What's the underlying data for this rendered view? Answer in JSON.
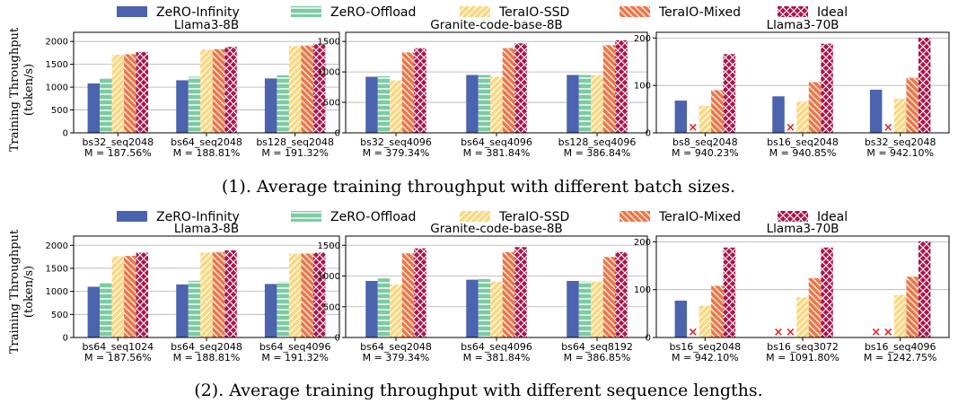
{
  "legend": [
    "ZeRO-Infinity",
    "ZeRO-Offload",
    "TeraIO-SSD",
    "TeraIO-Mixed",
    "Ideal"
  ],
  "colors": {
    "ZeRO-Infinity": "#4c63ad",
    "ZeRO-Offload": "#7ccba2",
    "TeraIO-SSD": "#fbd77e",
    "TeraIO-Mixed": "#ee7747",
    "Ideal": "#a8164c",
    "missing_marker": "#e02020"
  },
  "ylabel": [
    "Training Throughput",
    "(token/s)"
  ],
  "captions": [
    "(1). Average training throughput with different batch sizes.",
    "(2). Average training throughput with different sequence lengths."
  ],
  "missing_marker": "×",
  "chart_data": [
    {
      "type": "bar",
      "group": 1,
      "title": "Llama3-8B",
      "ylim": [
        0,
        2200
      ],
      "yticks": [
        0,
        500,
        1000,
        1500,
        2000
      ],
      "categories": [
        "bs32_seq2048",
        "bs64_seq2048",
        "bs128_seq2048"
      ],
      "category_notes": [
        "M = 187.56%",
        "M = 188.81%",
        "M = 191.32%"
      ],
      "series": [
        {
          "name": "ZeRO-Infinity",
          "values": [
            1080,
            1150,
            1190
          ]
        },
        {
          "name": "ZeRO-Offload",
          "values": [
            1190,
            1230,
            1260
          ]
        },
        {
          "name": "TeraIO-SSD",
          "values": [
            1710,
            1820,
            1900
          ]
        },
        {
          "name": "TeraIO-Mixed",
          "values": [
            1720,
            1830,
            1910
          ]
        },
        {
          "name": "Ideal",
          "values": [
            1770,
            1880,
            1950
          ]
        }
      ]
    },
    {
      "type": "bar",
      "group": 1,
      "title": "Granite-code-base-8B",
      "ylim": [
        0,
        1650
      ],
      "yticks": [
        0,
        500,
        1000,
        1500
      ],
      "categories": [
        "bs32_seq4096",
        "bs64_seq4096",
        "bs128_seq4096"
      ],
      "category_notes": [
        "M = 379.34%",
        "M = 381.84%",
        "M = 386.84%"
      ],
      "series": [
        {
          "name": "ZeRO-Infinity",
          "values": [
            920,
            950,
            950
          ]
        },
        {
          "name": "ZeRO-Offload",
          "values": [
            930,
            950,
            950
          ]
        },
        {
          "name": "TeraIO-SSD",
          "values": [
            860,
            920,
            950
          ]
        },
        {
          "name": "TeraIO-Mixed",
          "values": [
            1320,
            1390,
            1440
          ]
        },
        {
          "name": "Ideal",
          "values": [
            1390,
            1470,
            1520
          ]
        }
      ]
    },
    {
      "type": "bar",
      "group": 1,
      "title": "Llama3-70B",
      "ylim": [
        0,
        212
      ],
      "yticks": [
        0,
        100,
        200
      ],
      "categories": [
        "bs8_seq2048",
        "bs16_seq2048",
        "bs32_seq2048"
      ],
      "category_notes": [
        "M = 940.23%",
        "M = 940.85%",
        "M = 942.10%"
      ],
      "series": [
        {
          "name": "ZeRO-Infinity",
          "values": [
            68,
            77,
            91
          ]
        },
        {
          "name": "ZeRO-Offload",
          "values": [
            null,
            null,
            null
          ]
        },
        {
          "name": "TeraIO-SSD",
          "values": [
            57,
            66,
            72
          ]
        },
        {
          "name": "TeraIO-Mixed",
          "values": [
            90,
            107,
            116
          ]
        },
        {
          "name": "Ideal",
          "values": [
            166,
            188,
            201
          ]
        }
      ]
    },
    {
      "type": "bar",
      "group": 2,
      "title": "Llama3-8B",
      "ylim": [
        0,
        2200
      ],
      "yticks": [
        0,
        500,
        1000,
        1500,
        2000
      ],
      "categories": [
        "bs64_seq1024",
        "bs64_seq2048",
        "bs64_seq4096"
      ],
      "category_notes": [
        "M = 187.56%",
        "M = 188.81%",
        "M = 191.32%"
      ],
      "series": [
        {
          "name": "ZeRO-Infinity",
          "values": [
            1100,
            1150,
            1160
          ]
        },
        {
          "name": "ZeRO-Offload",
          "values": [
            1180,
            1230,
            1210
          ]
        },
        {
          "name": "TeraIO-SSD",
          "values": [
            1760,
            1840,
            1820
          ]
        },
        {
          "name": "TeraIO-Mixed",
          "values": [
            1770,
            1850,
            1820
          ]
        },
        {
          "name": "Ideal",
          "values": [
            1840,
            1890,
            1840
          ]
        }
      ]
    },
    {
      "type": "bar",
      "group": 2,
      "title": "Granite-code-base-8B",
      "ylim": [
        0,
        1650
      ],
      "yticks": [
        0,
        500,
        1000,
        1500
      ],
      "categories": [
        "bs64_seq2048",
        "bs64_seq4096",
        "bs64_seq8192"
      ],
      "category_notes": [
        "M = 379.34%",
        "M = 381.84%",
        "M = 386.85%"
      ],
      "series": [
        {
          "name": "ZeRO-Infinity",
          "values": [
            920,
            940,
            920
          ]
        },
        {
          "name": "ZeRO-Offload",
          "values": [
            960,
            950,
            910
          ]
        },
        {
          "name": "TeraIO-SSD",
          "values": [
            860,
            910,
            910
          ]
        },
        {
          "name": "TeraIO-Mixed",
          "values": [
            1370,
            1390,
            1310
          ]
        },
        {
          "name": "Ideal",
          "values": [
            1450,
            1470,
            1390
          ]
        }
      ]
    },
    {
      "type": "bar",
      "group": 2,
      "title": "Llama3-70B",
      "ylim": [
        0,
        212
      ],
      "yticks": [
        0,
        100,
        200
      ],
      "categories": [
        "bs16_seq2048",
        "bs16_seq3072",
        "bs16_seq4096"
      ],
      "category_notes": [
        "M = 942.10%",
        "M = 1091.80%",
        "M = 1242.75%"
      ],
      "series": [
        {
          "name": "ZeRO-Infinity",
          "values": [
            77,
            null,
            null
          ]
        },
        {
          "name": "ZeRO-Offload",
          "values": [
            null,
            null,
            null
          ]
        },
        {
          "name": "TeraIO-SSD",
          "values": [
            66,
            84,
            89
          ]
        },
        {
          "name": "TeraIO-Mixed",
          "values": [
            108,
            124,
            127
          ]
        },
        {
          "name": "Ideal",
          "values": [
            188,
            188,
            201
          ]
        }
      ]
    }
  ]
}
